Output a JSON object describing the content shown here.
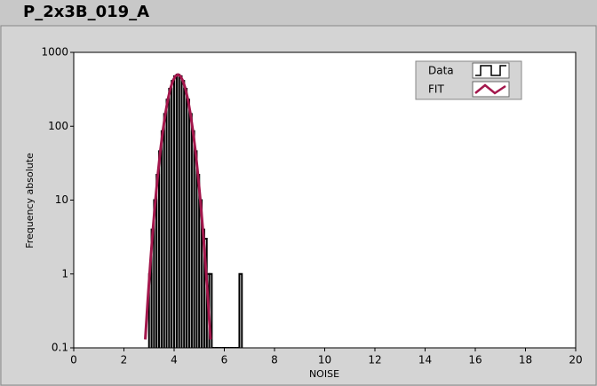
{
  "title": "P_2x3B_019_A",
  "chart_data": {
    "type": "histogram",
    "xlabel": "NOISE",
    "ylabel": "Frequency absolute",
    "xlim": [
      0,
      20
    ],
    "ylim": [
      0.1,
      1000
    ],
    "yscale": "log",
    "legend": "upper right",
    "xticks": [
      0,
      2,
      4,
      6,
      8,
      10,
      12,
      14,
      16,
      18,
      20
    ],
    "yticks": [
      0.1,
      1,
      10,
      100,
      1000
    ],
    "bins": [
      3.0,
      3.1,
      3.2,
      3.3,
      3.4,
      3.5,
      3.6,
      3.7,
      3.8,
      3.9,
      4.0,
      4.1,
      4.2,
      4.3,
      4.4,
      4.5,
      4.6,
      4.7,
      4.8,
      4.9,
      5.0,
      5.1,
      5.2,
      5.3,
      5.4,
      5.5,
      5.6,
      5.7,
      5.8,
      5.9,
      6.0,
      6.1,
      6.2,
      6.3,
      6.4,
      6.5,
      6.6,
      6.7
    ],
    "series": [
      {
        "name": "Data",
        "color": "#000000",
        "type": "histogram",
        "values": [
          1,
          4,
          10,
          22,
          46,
          86,
          147,
          229,
          322,
          411,
          476,
          500,
          476,
          411,
          322,
          229,
          147,
          86,
          46,
          22,
          10,
          4,
          3,
          1,
          1,
          0,
          0,
          0,
          0,
          0,
          0,
          0,
          0,
          0,
          0,
          0,
          1
        ]
      },
      {
        "name": "FIT",
        "color": "#a3174c",
        "type": "line",
        "x": [
          2.85,
          2.95,
          3.05,
          3.15,
          3.25,
          3.35,
          3.45,
          3.55,
          3.65,
          3.75,
          3.85,
          3.95,
          4.05,
          4.15,
          4.25,
          4.35,
          4.45,
          4.55,
          4.65,
          4.75,
          4.85,
          4.95,
          5.05,
          5.15,
          5.25,
          5.35,
          5.45
        ],
        "values": [
          0.13,
          0.44,
          1.35,
          3.8,
          9.6,
          22,
          46,
          86,
          147,
          229,
          322,
          411,
          476,
          500,
          476,
          411,
          322,
          229,
          147,
          86,
          46,
          22,
          9.6,
          3.8,
          1.35,
          0.44,
          0.13
        ]
      }
    ]
  }
}
